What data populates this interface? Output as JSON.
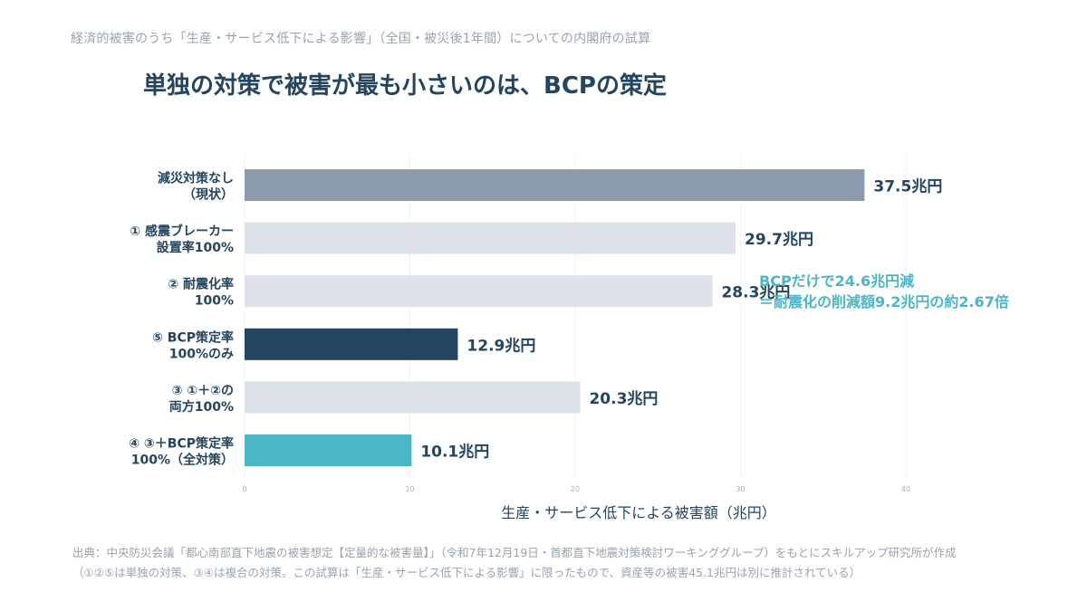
{
  "supertitle": "経済的被害のうち「生産・サービス低下による影響」（全国・被災後1年間）についての内閣府の試算",
  "headline": "単独の対策で被害が最も小さいのは、BCPの策定",
  "chart_data": {
    "type": "bar",
    "orientation": "horizontal",
    "categories": [
      [
        "減災対策なし",
        "（現状）"
      ],
      [
        "① 感震ブレーカー",
        "設置率100%"
      ],
      [
        "② 耐震化率",
        "100%"
      ],
      [
        "⑤ BCP策定率",
        "100%のみ"
      ],
      [
        "③ ①＋②の",
        "両方100%"
      ],
      [
        "④ ③＋BCP策定率",
        "100%（全対策）"
      ]
    ],
    "values": [
      37.5,
      29.7,
      28.3,
      12.9,
      20.3,
      10.1
    ],
    "value_labels": [
      "37.5兆円",
      "29.7兆円",
      "28.3兆円",
      "12.9兆円",
      "20.3兆円",
      "10.1兆円"
    ],
    "bar_colors": [
      "#8b9bab",
      "#dde2ea",
      "#dde2ea",
      "#24455f",
      "#dde2ea",
      "#4ab6c6"
    ],
    "xlabel": "生産・サービス低下による被害額（兆円）",
    "xlim": [
      0,
      40
    ],
    "xticks": [
      0,
      10,
      20,
      30,
      40
    ],
    "grid": true,
    "annotation": {
      "lines": [
        "BCPだけで24.6兆円減",
        "＝耐震化の削減額9.2兆円の約2.67倍"
      ],
      "color": "#4ab6c6"
    }
  },
  "source": {
    "line1": "出典：中央防災会議「都心南部直下地震の被害想定【定量的な被害量】」（令和7年12月19日・首都直下地震対策検討ワーキンググループ）をもとにスキルアップ研究所が作成",
    "line2": "（①②⑤は単独の対策、③④は複合の対策。この試算は「生産・サービス低下による影響」に限ったもので、資産等の被害45.1兆円は別に推計されている）"
  },
  "colors": {
    "text_dark": "#24455f",
    "text_muted": "#9aa3ae",
    "grid": "#eef0f4",
    "accent": "#4ab6c6"
  }
}
